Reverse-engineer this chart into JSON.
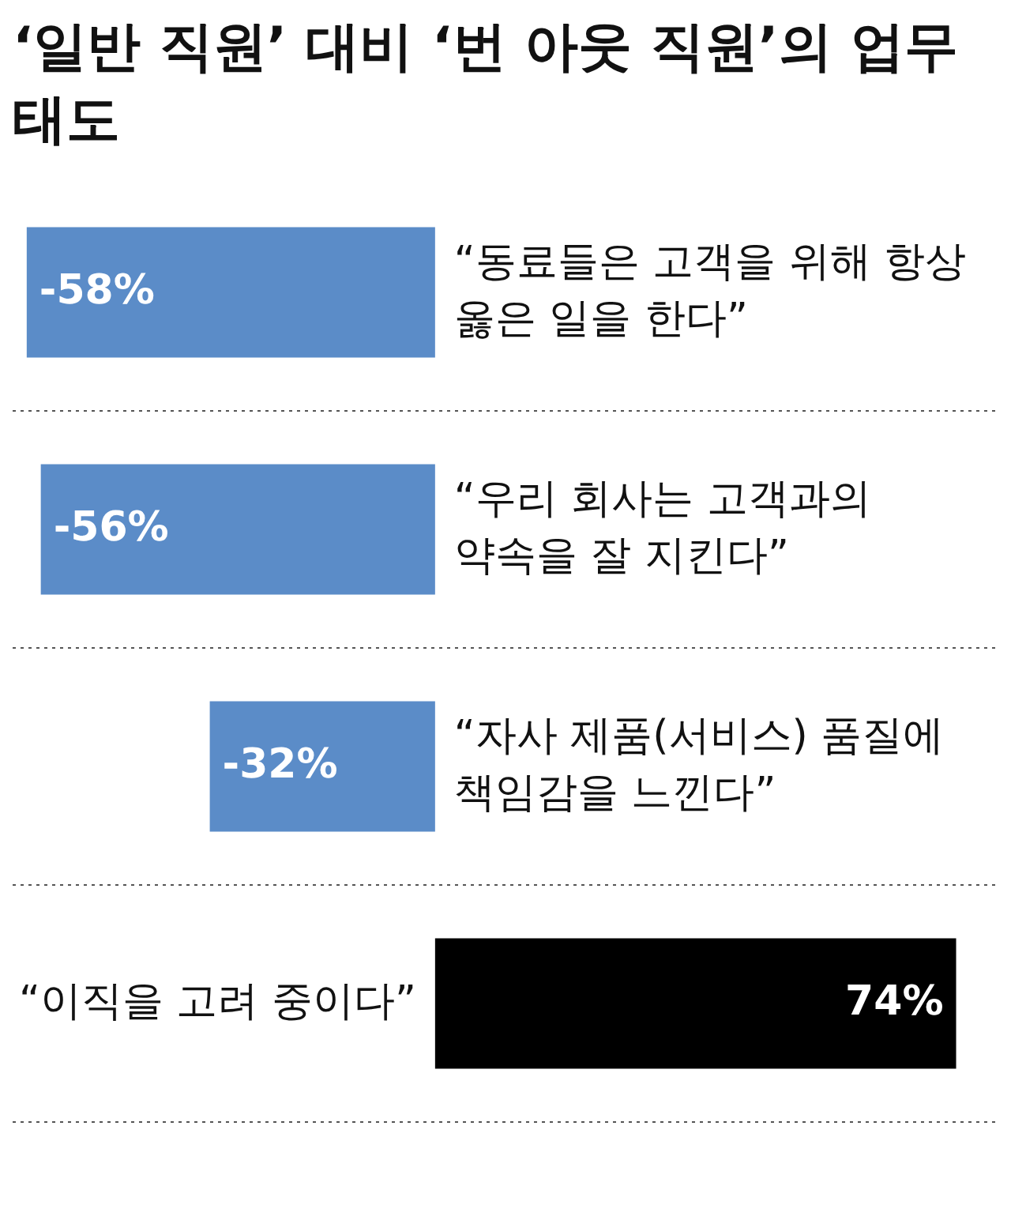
{
  "chart_data": {
    "type": "bar",
    "orientation": "horizontal",
    "title": "‘일반 직원’ 대비 ‘번 아웃 직원’의 업무 태도",
    "categories": [
      "“동료들은 고객을 위해 항상 옳은 일을 한다”",
      "“우리 회사는 고객과의 약속을 잘 지킨다”",
      "“자사 제품(서비스) 품질에 책임감을 느낀다”",
      "“이직을 고려 중이다”"
    ],
    "values": [
      -58,
      -56,
      -32,
      74
    ],
    "colors": [
      "#5b8cc8",
      "#5b8cc8",
      "#5b8cc8",
      "#000000"
    ],
    "value_labels": [
      "-58%",
      "-56%",
      "-32%",
      "74%"
    ],
    "grid": "y",
    "tick_labels": false,
    "legend": false
  }
}
